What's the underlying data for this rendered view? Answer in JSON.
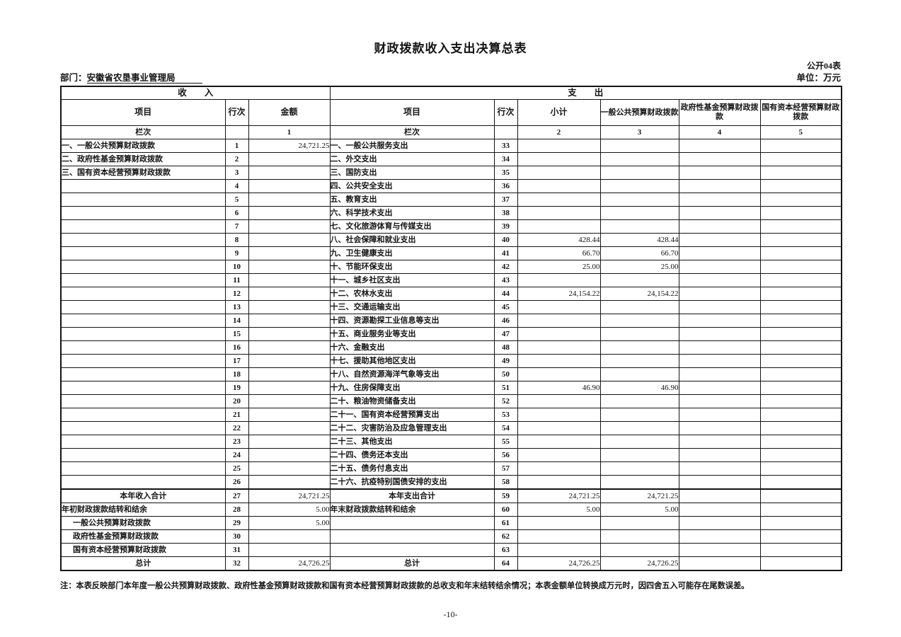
{
  "page": {
    "title": "财政拨款收入支出决算总表",
    "table_code": "公开04表",
    "unit": "单位：万元",
    "department_label": "部门：",
    "department_name": "安徽省农垦事业管理局",
    "note": "注：本表反映部门本年度一般公共预算财政拨款、政府性基金预算财政拨款和国有资本经营预算财政拨款的总收支和年末结转结余情况；本表金额单位转换成万元时，因四舍五入可能存在尾数误差。",
    "page_number": "-10-"
  },
  "table": {
    "income_header": "收　　入",
    "expense_header": "支　　出",
    "columns": {
      "item": "项目",
      "line": "行次",
      "amount": "金额",
      "subtotal": "小计",
      "general_budget": "一般公共预算财政拨款",
      "gov_fund": "政府性基金预算财政拨款",
      "state_capital": "国有资本经营预算财政拨款",
      "lanci": "栏次",
      "col_nums": [
        "1",
        "2",
        "3",
        "4",
        "5"
      ]
    },
    "rows": [
      {
        "i_label": "一、一般公共预算财政拨款",
        "i_line": "1",
        "i_amount": "24,721.25",
        "e_label": "一、一般公共服务支出",
        "e_line": "33",
        "e_sub": "",
        "e_gen": "",
        "e_fund": "",
        "e_cap": ""
      },
      {
        "i_label": "二、政府性基金预算财政拨款",
        "i_line": "2",
        "i_amount": "",
        "e_label": "二、外交支出",
        "e_line": "34",
        "e_sub": "",
        "e_gen": "",
        "e_fund": "",
        "e_cap": ""
      },
      {
        "i_label": "三、国有资本经营预算财政拨款",
        "i_line": "3",
        "i_amount": "",
        "e_label": "三、国防支出",
        "e_line": "35",
        "e_sub": "",
        "e_gen": "",
        "e_fund": "",
        "e_cap": ""
      },
      {
        "i_label": "",
        "i_line": "4",
        "i_amount": "",
        "e_label": "四、公共安全支出",
        "e_line": "36",
        "e_sub": "",
        "e_gen": "",
        "e_fund": "",
        "e_cap": ""
      },
      {
        "i_label": "",
        "i_line": "5",
        "i_amount": "",
        "e_label": "五、教育支出",
        "e_line": "37",
        "e_sub": "",
        "e_gen": "",
        "e_fund": "",
        "e_cap": ""
      },
      {
        "i_label": "",
        "i_line": "6",
        "i_amount": "",
        "e_label": "六、科学技术支出",
        "e_line": "38",
        "e_sub": "",
        "e_gen": "",
        "e_fund": "",
        "e_cap": ""
      },
      {
        "i_label": "",
        "i_line": "7",
        "i_amount": "",
        "e_label": "七、文化旅游体育与传媒支出",
        "e_line": "39",
        "e_sub": "",
        "e_gen": "",
        "e_fund": "",
        "e_cap": ""
      },
      {
        "i_label": "",
        "i_line": "8",
        "i_amount": "",
        "e_label": "八、社会保障和就业支出",
        "e_line": "40",
        "e_sub": "428.44",
        "e_gen": "428.44",
        "e_fund": "",
        "e_cap": ""
      },
      {
        "i_label": "",
        "i_line": "9",
        "i_amount": "",
        "e_label": "九、卫生健康支出",
        "e_line": "41",
        "e_sub": "66.70",
        "e_gen": "66.70",
        "e_fund": "",
        "e_cap": ""
      },
      {
        "i_label": "",
        "i_line": "10",
        "i_amount": "",
        "e_label": "十、节能环保支出",
        "e_line": "42",
        "e_sub": "25.00",
        "e_gen": "25.00",
        "e_fund": "",
        "e_cap": ""
      },
      {
        "i_label": "",
        "i_line": "11",
        "i_amount": "",
        "e_label": "十一、城乡社区支出",
        "e_line": "43",
        "e_sub": "",
        "e_gen": "",
        "e_fund": "",
        "e_cap": ""
      },
      {
        "i_label": "",
        "i_line": "12",
        "i_amount": "",
        "e_label": "十二、农林水支出",
        "e_line": "44",
        "e_sub": "24,154.22",
        "e_gen": "24,154.22",
        "e_fund": "",
        "e_cap": ""
      },
      {
        "i_label": "",
        "i_line": "13",
        "i_amount": "",
        "e_label": "十三、交通运输支出",
        "e_line": "45",
        "e_sub": "",
        "e_gen": "",
        "e_fund": "",
        "e_cap": ""
      },
      {
        "i_label": "",
        "i_line": "14",
        "i_amount": "",
        "e_label": "十四、资源勘探工业信息等支出",
        "e_line": "46",
        "e_sub": "",
        "e_gen": "",
        "e_fund": "",
        "e_cap": ""
      },
      {
        "i_label": "",
        "i_line": "15",
        "i_amount": "",
        "e_label": "十五、商业服务业等支出",
        "e_line": "47",
        "e_sub": "",
        "e_gen": "",
        "e_fund": "",
        "e_cap": ""
      },
      {
        "i_label": "",
        "i_line": "16",
        "i_amount": "",
        "e_label": "十六、金融支出",
        "e_line": "48",
        "e_sub": "",
        "e_gen": "",
        "e_fund": "",
        "e_cap": ""
      },
      {
        "i_label": "",
        "i_line": "17",
        "i_amount": "",
        "e_label": "十七、援助其他地区支出",
        "e_line": "49",
        "e_sub": "",
        "e_gen": "",
        "e_fund": "",
        "e_cap": ""
      },
      {
        "i_label": "",
        "i_line": "18",
        "i_amount": "",
        "e_label": "十八、自然资源海洋气象等支出",
        "e_line": "50",
        "e_sub": "",
        "e_gen": "",
        "e_fund": "",
        "e_cap": ""
      },
      {
        "i_label": "",
        "i_line": "19",
        "i_amount": "",
        "e_label": "十九、住房保障支出",
        "e_line": "51",
        "e_sub": "46.90",
        "e_gen": "46.90",
        "e_fund": "",
        "e_cap": ""
      },
      {
        "i_label": "",
        "i_line": "20",
        "i_amount": "",
        "e_label": "二十、粮油物资储备支出",
        "e_line": "52",
        "e_sub": "",
        "e_gen": "",
        "e_fund": "",
        "e_cap": ""
      },
      {
        "i_label": "",
        "i_line": "21",
        "i_amount": "",
        "e_label": "二十一、国有资本经营预算支出",
        "e_line": "53",
        "e_sub": "",
        "e_gen": "",
        "e_fund": "",
        "e_cap": ""
      },
      {
        "i_label": "",
        "i_line": "22",
        "i_amount": "",
        "e_label": "二十二、灾害防治及应急管理支出",
        "e_line": "54",
        "e_sub": "",
        "e_gen": "",
        "e_fund": "",
        "e_cap": ""
      },
      {
        "i_label": "",
        "i_line": "23",
        "i_amount": "",
        "e_label": "二十三、其他支出",
        "e_line": "55",
        "e_sub": "",
        "e_gen": "",
        "e_fund": "",
        "e_cap": ""
      },
      {
        "i_label": "",
        "i_line": "24",
        "i_amount": "",
        "e_label": "二十四、债务还本支出",
        "e_line": "56",
        "e_sub": "",
        "e_gen": "",
        "e_fund": "",
        "e_cap": ""
      },
      {
        "i_label": "",
        "i_line": "25",
        "i_amount": "",
        "e_label": "二十五、债务付息支出",
        "e_line": "57",
        "e_sub": "",
        "e_gen": "",
        "e_fund": "",
        "e_cap": ""
      },
      {
        "i_label": "",
        "i_line": "26",
        "i_amount": "",
        "e_label": "二十六、抗疫特别国债安排的支出",
        "e_line": "58",
        "e_sub": "",
        "e_gen": "",
        "e_fund": "",
        "e_cap": ""
      },
      {
        "i_label": "本年收入合计",
        "i_style": "total",
        "i_line": "27",
        "i_amount": "24,721.25",
        "e_label": "本年支出合计",
        "e_style": "total",
        "e_line": "59",
        "e_sub": "24,721.25",
        "e_gen": "24,721.25",
        "e_fund": "",
        "e_cap": ""
      },
      {
        "i_label": "年初财政拨款结转和结余",
        "i_line": "28",
        "i_amount": "5.00",
        "e_label": "年末财政拨款结转和结余",
        "e_line": "60",
        "e_sub": "5.00",
        "e_gen": "5.00",
        "e_fund": "",
        "e_cap": ""
      },
      {
        "i_label": "一般公共预算财政拨款",
        "i_style": "sub",
        "i_line": "29",
        "i_amount": "5.00",
        "e_label": "",
        "e_line": "61",
        "e_sub": "",
        "e_gen": "",
        "e_fund": "",
        "e_cap": ""
      },
      {
        "i_label": "政府性基金预算财政拨款",
        "i_style": "sub",
        "i_line": "30",
        "i_amount": "",
        "e_label": "",
        "e_line": "62",
        "e_sub": "",
        "e_gen": "",
        "e_fund": "",
        "e_cap": ""
      },
      {
        "i_label": "国有资本经营预算财政拨款",
        "i_style": "sub",
        "i_line": "31",
        "i_amount": "",
        "e_label": "",
        "e_line": "63",
        "e_sub": "",
        "e_gen": "",
        "e_fund": "",
        "e_cap": ""
      },
      {
        "i_label": "总计",
        "i_style": "total",
        "i_line": "32",
        "i_amount": "24,726.25",
        "e_label": "总计",
        "e_style": "total",
        "e_line": "64",
        "e_sub": "24,726.25",
        "e_gen": "24,726.25",
        "e_fund": "",
        "e_cap": ""
      }
    ]
  }
}
